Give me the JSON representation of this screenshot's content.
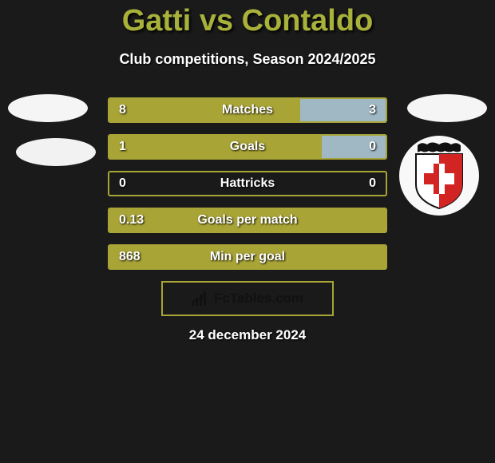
{
  "title": {
    "text": "Gatti vs Contaldo",
    "color": "#a8b13a",
    "fontsize": 38
  },
  "subtitle": {
    "text": "Club competitions, Season 2024/2025",
    "fontsize": 18
  },
  "colors": {
    "background": "#1a1a1a",
    "left_fill": "#a8a436",
    "right_fill": "#9fb8c4",
    "row_border": "#a8a436",
    "text": "#ffffff",
    "fctables_border": "#a8a436",
    "fctables_text": "#111111"
  },
  "chart": {
    "type": "comparison-bars",
    "rows": [
      {
        "label": "Matches",
        "left": "8",
        "right": "3",
        "left_pct": 69,
        "right_pct": 31
      },
      {
        "label": "Goals",
        "left": "1",
        "right": "0",
        "left_pct": 77,
        "right_pct": 23
      },
      {
        "label": "Hattricks",
        "left": "0",
        "right": "0",
        "left_pct": 0,
        "right_pct": 0
      },
      {
        "label": "Goals per match",
        "left": "0.13",
        "right": "",
        "left_pct": 100,
        "right_pct": 0
      },
      {
        "label": "Min per goal",
        "left": "868",
        "right": "",
        "left_pct": 100,
        "right_pct": 0
      }
    ]
  },
  "fctables": {
    "text": "FcTables.com"
  },
  "date": {
    "text": "24 december 2024"
  },
  "badges": {
    "left_ellipse1_color": "#f5f5f5",
    "left_ellipse2_color": "#f2f2f2",
    "right_ellipse_color": "#f5f5f5",
    "crest_bg": "#f8f8f8",
    "crest_crown": "#111111",
    "crest_shield_left": "#ffffff",
    "crest_shield_right": "#d32424",
    "crest_cross": "#d32424"
  }
}
